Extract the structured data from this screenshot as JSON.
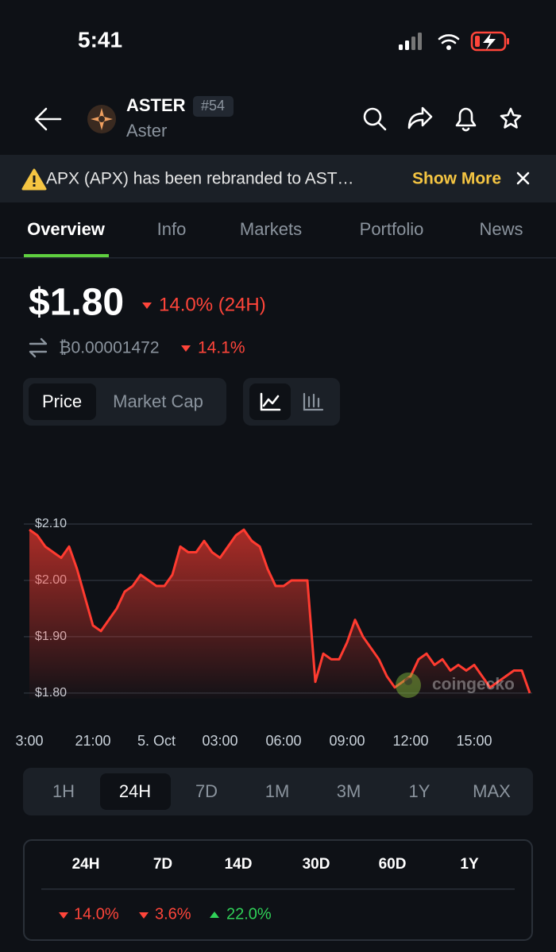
{
  "status_bar": {
    "time": "5:41"
  },
  "header": {
    "symbol": "ASTER",
    "rank": "#54",
    "name": "Aster"
  },
  "notice": {
    "text": "APX (APX) has been rebranded to AST…",
    "action": "Show More"
  },
  "tabs": [
    "Overview",
    "Info",
    "Markets",
    "Portfolio",
    "News"
  ],
  "price": {
    "usd": "$1.80",
    "change_24h": "14.0% (24H)",
    "btc": "₿0.00001472",
    "btc_change": "14.1%"
  },
  "chart_modes": [
    "Price",
    "Market Cap"
  ],
  "chart_data": {
    "type": "area",
    "color": "#ff3b30",
    "watermark": "coingecko",
    "grid": true,
    "categories": [
      "3:00",
      null,
      null,
      null,
      null,
      null,
      null,
      null,
      "21:00",
      null,
      null,
      null,
      null,
      null,
      null,
      null,
      "5. Oct",
      null,
      null,
      null,
      null,
      null,
      null,
      null,
      "03:00",
      null,
      null,
      null,
      null,
      null,
      null,
      null,
      "06:00",
      null,
      null,
      null,
      null,
      null,
      null,
      null,
      "09:00",
      null,
      null,
      null,
      null,
      null,
      null,
      null,
      "12:00",
      null,
      null,
      null,
      null,
      null,
      null,
      null,
      "15:00",
      null,
      null,
      null,
      null,
      null,
      null,
      null
    ],
    "values": [
      2.09,
      2.08,
      2.06,
      2.05,
      2.04,
      2.06,
      2.02,
      1.97,
      1.92,
      1.91,
      1.93,
      1.95,
      1.98,
      1.99,
      2.01,
      2.0,
      1.99,
      1.99,
      2.01,
      2.06,
      2.05,
      2.05,
      2.07,
      2.05,
      2.04,
      2.06,
      2.08,
      2.09,
      2.07,
      2.06,
      2.02,
      1.99,
      1.99,
      2.0,
      2.0,
      2.0,
      1.82,
      1.87,
      1.86,
      1.86,
      1.89,
      1.93,
      1.9,
      1.88,
      1.86,
      1.83,
      1.81,
      1.82,
      1.83,
      1.86,
      1.87,
      1.85,
      1.86,
      1.84,
      1.85,
      1.84,
      1.85,
      1.83,
      1.81,
      1.82,
      1.83,
      1.84,
      1.84,
      1.8
    ],
    "ylim": [
      1.79,
      2.13
    ],
    "yticks": [
      {
        "value": 1.8,
        "label": "$1.80"
      },
      {
        "value": 1.9,
        "label": "$1.90"
      },
      {
        "value": 2.0,
        "label": "$2.00"
      },
      {
        "value": 2.1,
        "label": "$2.10"
      }
    ]
  },
  "time_ranges": [
    "1H",
    "24H",
    "7D",
    "1M",
    "3M",
    "1Y",
    "MAX"
  ],
  "performance": {
    "periods": [
      "24H",
      "7D",
      "14D",
      "30D",
      "60D",
      "1Y"
    ],
    "changes": [
      "14.0%",
      "3.6%",
      "22.0%"
    ]
  }
}
